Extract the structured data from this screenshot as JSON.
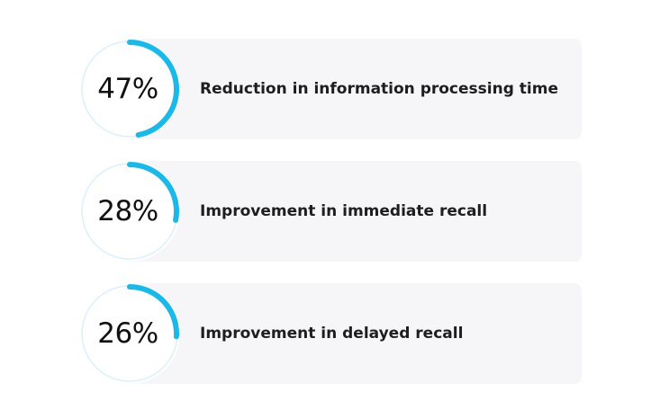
{
  "accent_color": "#1cb8e8",
  "track_color": "#d9f1fa",
  "stats": [
    {
      "value": "47%",
      "fraction": 0.47,
      "label": "Reduction in information processing time"
    },
    {
      "value": "28%",
      "fraction": 0.28,
      "label": "Improvement in immediate recall"
    },
    {
      "value": "26%",
      "fraction": 0.26,
      "label": "Improvement in delayed recall"
    }
  ]
}
